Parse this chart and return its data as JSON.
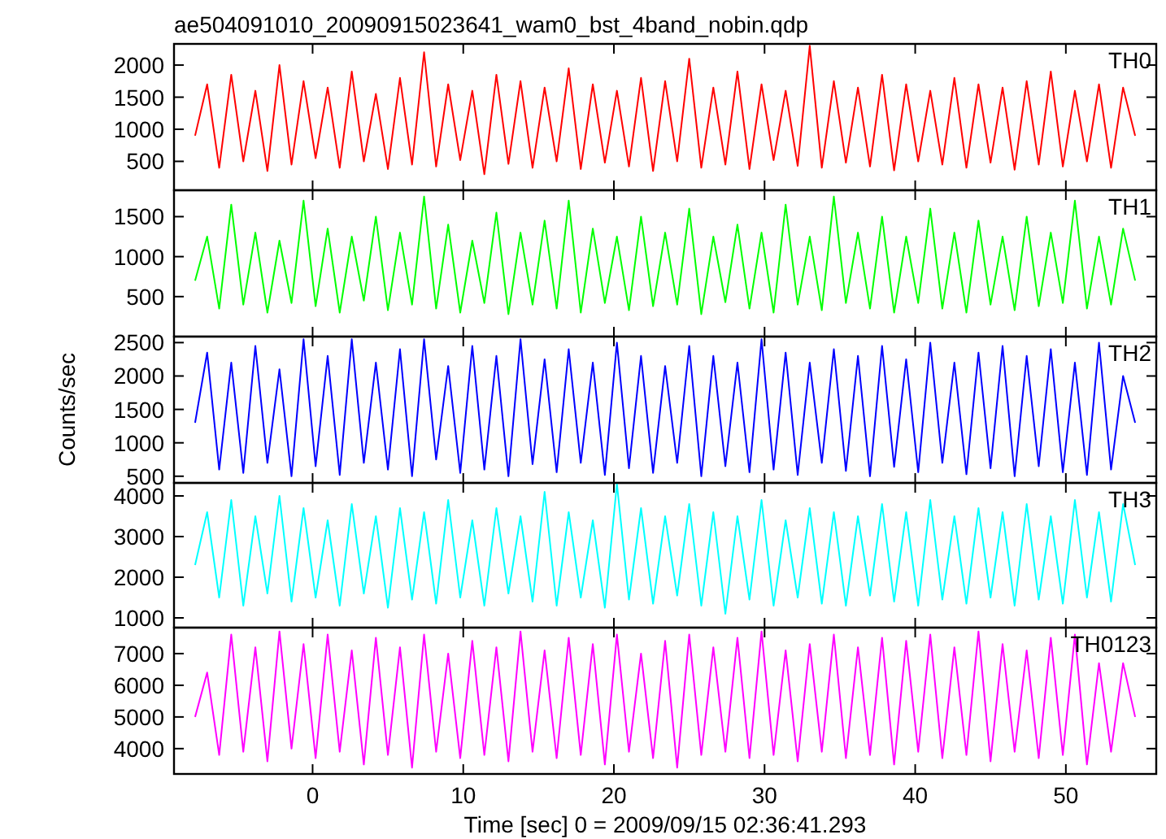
{
  "chart_data": [
    {
      "type": "line",
      "title": "ae504091010_20090915023641_wam0_bst_4band_nobin.qdp",
      "tick_labels": "y",
      "xlim": [
        -9.2,
        56
      ],
      "ylim": [
        50,
        2330
      ],
      "xticks": [
        0,
        10,
        20,
        30,
        40,
        50
      ],
      "yticks": [
        500,
        1000,
        1500,
        2000
      ],
      "x": [
        -7.8,
        -7,
        -6.2,
        -5.4,
        -4.6,
        -3.8,
        -3,
        -2.2,
        -1.4,
        -0.6,
        0.2,
        1,
        1.8,
        2.6,
        3.4,
        4.2,
        5,
        5.8,
        6.6,
        7.4,
        8.2,
        9,
        9.8,
        10.6,
        11.4,
        12.2,
        13,
        13.8,
        14.6,
        15.4,
        16.2,
        17,
        17.8,
        18.6,
        19.4,
        20.2,
        21,
        21.8,
        22.6,
        23.4,
        24.2,
        25,
        25.8,
        26.6,
        27.4,
        28.2,
        29,
        29.8,
        30.6,
        31.4,
        32.2,
        33,
        33.8,
        34.6,
        35.4,
        36.2,
        37,
        37.8,
        38.6,
        39.4,
        40.2,
        41,
        41.8,
        42.6,
        43.4,
        44.2,
        45,
        45.8,
        46.6,
        47.4,
        48.2,
        49,
        49.8,
        50.6,
        51.4,
        52.2,
        53,
        53.8,
        54.6
      ],
      "series": [
        {
          "name": "TH0",
          "color": "#ff0000",
          "values": [
            900,
            1700,
            400,
            1850,
            500,
            1600,
            350,
            2000,
            450,
            1750,
            550,
            1650,
            400,
            1900,
            500,
            1550,
            380,
            1800,
            450,
            2200,
            420,
            1700,
            520,
            1600,
            300,
            1850,
            460,
            1750,
            400,
            1650,
            500,
            1950,
            380,
            1700,
            480,
            1600,
            420,
            1800,
            350,
            1750,
            500,
            2100,
            400,
            1650,
            450,
            1900,
            380,
            1700,
            520,
            1600,
            430,
            2300,
            400,
            1750,
            480,
            1650,
            420,
            1850,
            360,
            1700,
            500,
            1600,
            450,
            1800,
            400,
            1700,
            480,
            1650,
            370,
            1750,
            450,
            1900,
            420,
            1600,
            500,
            1700,
            400,
            1650,
            900
          ]
        }
      ]
    },
    {
      "type": "line",
      "tick_labels": "y",
      "xlim": [
        -9.2,
        56
      ],
      "ylim": [
        0,
        1830
      ],
      "xticks": [
        0,
        10,
        20,
        30,
        40,
        50
      ],
      "yticks": [
        500,
        1000,
        1500
      ],
      "x": [
        -7.8,
        -7,
        -6.2,
        -5.4,
        -4.6,
        -3.8,
        -3,
        -2.2,
        -1.4,
        -0.6,
        0.2,
        1,
        1.8,
        2.6,
        3.4,
        4.2,
        5,
        5.8,
        6.6,
        7.4,
        8.2,
        9,
        9.8,
        10.6,
        11.4,
        12.2,
        13,
        13.8,
        14.6,
        15.4,
        16.2,
        17,
        17.8,
        18.6,
        19.4,
        20.2,
        21,
        21.8,
        22.6,
        23.4,
        24.2,
        25,
        25.8,
        26.6,
        27.4,
        28.2,
        29,
        29.8,
        30.6,
        31.4,
        32.2,
        33,
        33.8,
        34.6,
        35.4,
        36.2,
        37,
        37.8,
        38.6,
        39.4,
        40.2,
        41,
        41.8,
        42.6,
        43.4,
        44.2,
        45,
        45.8,
        46.6,
        47.4,
        48.2,
        49,
        49.8,
        50.6,
        51.4,
        52.2,
        53,
        53.8,
        54.6
      ],
      "series": [
        {
          "name": "TH1",
          "color": "#00ff00",
          "values": [
            700,
            1250,
            350,
            1650,
            400,
            1300,
            300,
            1200,
            420,
            1700,
            380,
            1350,
            300,
            1250,
            450,
            1500,
            330,
            1300,
            400,
            1750,
            350,
            1400,
            300,
            1200,
            420,
            1550,
            280,
            1300,
            400,
            1450,
            350,
            1700,
            300,
            1350,
            420,
            1250,
            330,
            1500,
            380,
            1300,
            400,
            1600,
            280,
            1250,
            430,
            1400,
            350,
            1300,
            300,
            1650,
            400,
            1250,
            330,
            1750,
            420,
            1300,
            350,
            1500,
            300,
            1250,
            420,
            1600,
            350,
            1300,
            300,
            1450,
            400,
            1250,
            330,
            1500,
            380,
            1300,
            420,
            1700,
            350,
            1250,
            400,
            1350,
            700
          ]
        }
      ]
    },
    {
      "type": "line",
      "ylabel": "Counts/sec",
      "tick_labels": "y",
      "xlim": [
        -9.2,
        56
      ],
      "ylim": [
        400,
        2590
      ],
      "xticks": [
        0,
        10,
        20,
        30,
        40,
        50
      ],
      "yticks": [
        500,
        1000,
        1500,
        2000,
        2500
      ],
      "x": [
        -7.8,
        -7,
        -6.2,
        -5.4,
        -4.6,
        -3.8,
        -3,
        -2.2,
        -1.4,
        -0.6,
        0.2,
        1,
        1.8,
        2.6,
        3.4,
        4.2,
        5,
        5.8,
        6.6,
        7.4,
        8.2,
        9,
        9.8,
        10.6,
        11.4,
        12.2,
        13,
        13.8,
        14.6,
        15.4,
        16.2,
        17,
        17.8,
        18.6,
        19.4,
        20.2,
        21,
        21.8,
        22.6,
        23.4,
        24.2,
        25,
        25.8,
        26.6,
        27.4,
        28.2,
        29,
        29.8,
        30.6,
        31.4,
        32.2,
        33,
        33.8,
        34.6,
        35.4,
        36.2,
        37,
        37.8,
        38.6,
        39.4,
        40.2,
        41,
        41.8,
        42.6,
        43.4,
        44.2,
        45,
        45.8,
        46.6,
        47.4,
        48.2,
        49,
        49.8,
        50.6,
        51.4,
        52.2,
        53,
        53.8,
        54.6
      ],
      "series": [
        {
          "name": "TH2",
          "color": "#0000ff",
          "values": [
            1300,
            2350,
            600,
            2200,
            550,
            2450,
            700,
            2100,
            500,
            2550,
            650,
            2300,
            520,
            2550,
            700,
            2200,
            600,
            2400,
            500,
            2550,
            750,
            2150,
            550,
            2450,
            600,
            2300,
            500,
            2550,
            680,
            2250,
            560,
            2400,
            700,
            2200,
            520,
            2500,
            620,
            2300,
            550,
            2150,
            700,
            2450,
            500,
            2300,
            650,
            2200,
            560,
            2550,
            600,
            2350,
            520,
            2200,
            700,
            2400,
            580,
            2300,
            500,
            2450,
            640,
            2250,
            560,
            2500,
            700,
            2200,
            530,
            2350,
            620,
            2450,
            500,
            2300,
            650,
            2400,
            560,
            2200,
            520,
            2500,
            600,
            2000,
            1300
          ]
        }
      ]
    },
    {
      "type": "line",
      "tick_labels": "y",
      "xlim": [
        -9.2,
        56
      ],
      "ylim": [
        760,
        4320
      ],
      "xticks": [
        0,
        10,
        20,
        30,
        40,
        50
      ],
      "yticks": [
        1000,
        2000,
        3000,
        4000
      ],
      "x": [
        -7.8,
        -7,
        -6.2,
        -5.4,
        -4.6,
        -3.8,
        -3,
        -2.2,
        -1.4,
        -0.6,
        0.2,
        1,
        1.8,
        2.6,
        3.4,
        4.2,
        5,
        5.8,
        6.6,
        7.4,
        8.2,
        9,
        9.8,
        10.6,
        11.4,
        12.2,
        13,
        13.8,
        14.6,
        15.4,
        16.2,
        17,
        17.8,
        18.6,
        19.4,
        20.2,
        21,
        21.8,
        22.6,
        23.4,
        24.2,
        25,
        25.8,
        26.6,
        27.4,
        28.2,
        29,
        29.8,
        30.6,
        31.4,
        32.2,
        33,
        33.8,
        34.6,
        35.4,
        36.2,
        37,
        37.8,
        38.6,
        39.4,
        40.2,
        41,
        41.8,
        42.6,
        43.4,
        44.2,
        45,
        45.8,
        46.6,
        47.4,
        48.2,
        49,
        49.8,
        50.6,
        51.4,
        52.2,
        53,
        53.8,
        54.6
      ],
      "series": [
        {
          "name": "TH3",
          "color": "#00ffff",
          "values": [
            2300,
            3600,
            1500,
            3900,
            1300,
            3500,
            1600,
            4000,
            1400,
            3700,
            1500,
            3400,
            1300,
            3800,
            1600,
            3500,
            1250,
            3700,
            1450,
            3600,
            1350,
            3900,
            1500,
            3400,
            1300,
            3700,
            1600,
            3500,
            1400,
            4100,
            1300,
            3600,
            1500,
            3400,
            1250,
            4300,
            1450,
            3700,
            1350,
            3500,
            1550,
            3800,
            1300,
            3600,
            1100,
            3500,
            1450,
            3900,
            1300,
            3400,
            1500,
            3700,
            1350,
            3600,
            1300,
            3500,
            1550,
            3800,
            1400,
            3600,
            1300,
            3900,
            1450,
            3500,
            1350,
            3700,
            1500,
            3600,
            1300,
            3800,
            1450,
            3500,
            1350,
            3900,
            1500,
            3600,
            1400,
            3800,
            2300
          ]
        }
      ]
    },
    {
      "type": "line",
      "xlabel": "Time [sec] 0 = 2009/09/15 02:36:41.293",
      "xlim": [
        -9.2,
        56
      ],
      "ylim": [
        3200,
        7820
      ],
      "xticks": [
        0,
        10,
        20,
        30,
        40,
        50
      ],
      "yticks": [
        4000,
        5000,
        6000,
        7000
      ],
      "x": [
        -7.8,
        -7,
        -6.2,
        -5.4,
        -4.6,
        -3.8,
        -3,
        -2.2,
        -1.4,
        -0.6,
        0.2,
        1,
        1.8,
        2.6,
        3.4,
        4.2,
        5,
        5.8,
        6.6,
        7.4,
        8.2,
        9,
        9.8,
        10.6,
        11.4,
        12.2,
        13,
        13.8,
        14.6,
        15.4,
        16.2,
        17,
        17.8,
        18.6,
        19.4,
        20.2,
        21,
        21.8,
        22.6,
        23.4,
        24.2,
        25,
        25.8,
        26.6,
        27.4,
        28.2,
        29,
        29.8,
        30.6,
        31.4,
        32.2,
        33,
        33.8,
        34.6,
        35.4,
        36.2,
        37,
        37.8,
        38.6,
        39.4,
        40.2,
        41,
        41.8,
        42.6,
        43.4,
        44.2,
        45,
        45.8,
        46.6,
        47.4,
        48.2,
        49,
        49.8,
        50.6,
        51.4,
        52.2,
        53,
        53.8,
        54.6
      ],
      "series": [
        {
          "name": "TH0123",
          "color": "#ff00ff",
          "values": [
            5000,
            6400,
            3800,
            7600,
            3900,
            7200,
            3600,
            7700,
            4000,
            7300,
            3700,
            7600,
            3900,
            7100,
            3500,
            7500,
            3800,
            7200,
            3400,
            7600,
            3900,
            7000,
            3700,
            7400,
            3800,
            7200,
            3600,
            7700,
            3900,
            7100,
            3700,
            7500,
            3800,
            7300,
            3500,
            7600,
            3900,
            7000,
            3700,
            7400,
            3400,
            7600,
            3800,
            7200,
            3900,
            7500,
            3700,
            7700,
            3800,
            7100,
            3600,
            7300,
            3900,
            7600,
            3700,
            7200,
            3800,
            7500,
            3500,
            7400,
            3900,
            7600,
            3700,
            7200,
            3800,
            7700,
            3600,
            7300,
            3900,
            7100,
            3700,
            7500,
            3800,
            7600,
            3500,
            6700,
            3900,
            6700,
            5000
          ]
        }
      ]
    }
  ]
}
